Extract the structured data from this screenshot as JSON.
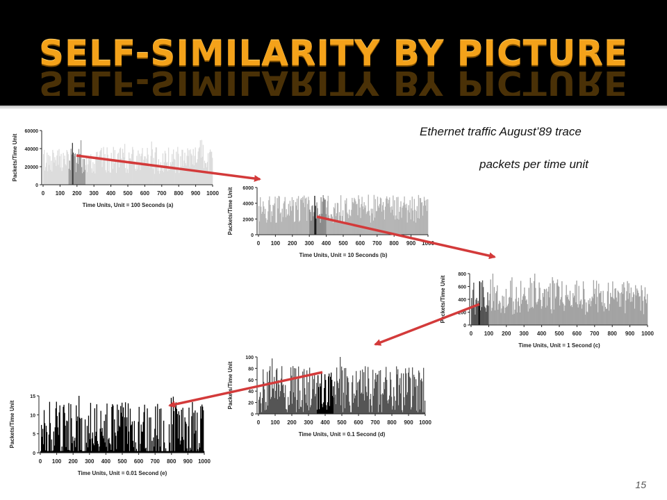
{
  "slide": {
    "title": "SELF-SIMILARITY BY PICTURE",
    "caption_line1": "Ethernet traffic August’89 trace",
    "caption_line2": "packets per time unit",
    "page_number": "15"
  },
  "colors": {
    "title": "#f4a21a",
    "arrow": "#d33a3a"
  },
  "chart_data": [
    {
      "type": "bar",
      "ylabel": "Packets/Time Unit",
      "xlabel": "Time Units, Unit = 100 Seconds  (a)",
      "xlim": [
        0,
        1000
      ],
      "ylim": [
        0,
        60000
      ],
      "xticks": [
        "0",
        "100",
        "200",
        "300",
        "400",
        "500",
        "600",
        "700",
        "800",
        "900",
        "1000"
      ],
      "yticks": [
        "0",
        "20000",
        "40000",
        "60000"
      ],
      "bar_color": "#dcdcdc",
      "base_level": 0.45,
      "noise": 0.25,
      "highlight": {
        "from": 150,
        "to": 250,
        "color": "#9c9c9c"
      },
      "inner_highlight": {
        "from": 170,
        "to": 180,
        "color": "#3a3a3a"
      }
    },
    {
      "type": "bar",
      "ylabel": "Packets/Time Unit",
      "xlabel": "Time Units, Unit = 10 Seconds  (b)",
      "xlim": [
        0,
        1000
      ],
      "ylim": [
        0,
        6000
      ],
      "xticks": [
        "0",
        "100",
        "200",
        "300",
        "400",
        "500",
        "600",
        "700",
        "800",
        "900",
        "1000"
      ],
      "yticks": [
        "0",
        "2000",
        "4000",
        "6000"
      ],
      "bar_color": "#b5b5b5",
      "base_level": 0.55,
      "noise": 0.3,
      "highlight": {
        "from": 300,
        "to": 400,
        "color": "#8a8a8a"
      },
      "inner_highlight": {
        "from": 330,
        "to": 340,
        "color": "#1a1a1a"
      }
    },
    {
      "type": "bar",
      "ylabel": "Packets/Time Unit",
      "xlabel": "Time Units, Unit = 1 Second  (c)",
      "xlim": [
        0,
        1000
      ],
      "ylim": [
        0,
        800
      ],
      "xticks": [
        "0",
        "100",
        "200",
        "300",
        "400",
        "500",
        "600",
        "700",
        "800",
        "900",
        "1000"
      ],
      "yticks": [
        "0",
        "200",
        "400",
        "600",
        "800"
      ],
      "bar_color": "#a3a3a3",
      "base_level": 0.55,
      "noise": 0.35,
      "highlight": {
        "from": 0,
        "to": 100,
        "color": "#555555"
      },
      "inner_highlight": {
        "from": 40,
        "to": 50,
        "color": "#0a0a0a"
      }
    },
    {
      "type": "bar",
      "ylabel": "Packets/Time Unit",
      "xlabel": "Time Units, Unit = 0.1 Second  (d)",
      "xlim": [
        0,
        1000
      ],
      "ylim": [
        0,
        100
      ],
      "xticks": [
        "0",
        "100",
        "200",
        "300",
        "400",
        "500",
        "600",
        "700",
        "800",
        "900",
        "1000"
      ],
      "yticks": [
        "0",
        "20",
        "40",
        "60",
        "80",
        "100"
      ],
      "bar_color": "#555555",
      "base_level": 0.4,
      "noise": 0.45,
      "highlight": {
        "from": 350,
        "to": 450,
        "color": "#000000"
      },
      "inner_highlight": null
    },
    {
      "type": "bar",
      "ylabel": "Packets/Time Unit",
      "xlabel": "Time Units, Unit = 0.01 Second  (e)",
      "xlim": [
        0,
        1000
      ],
      "ylim": [
        0,
        15
      ],
      "xticks": [
        "0",
        "100",
        "200",
        "300",
        "400",
        "500",
        "600",
        "700",
        "800",
        "900",
        "1000"
      ],
      "yticks": [
        "0",
        "5",
        "10",
        "15"
      ],
      "bar_color": "#000000",
      "base_level": 0.35,
      "noise": 0.55,
      "highlight": null,
      "inner_highlight": null
    }
  ]
}
